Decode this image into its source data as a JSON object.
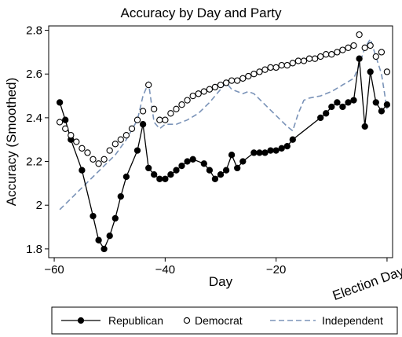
{
  "chart_data": {
    "type": "line",
    "title": "Accuracy by Day and Party",
    "xlabel": "Day",
    "ylabel": "Accuracy (Smoothed)",
    "xlim": [
      -61,
      1
    ],
    "ylim": [
      1.76,
      2.82
    ],
    "xticks": [
      -60,
      -40,
      -20
    ],
    "yticks": [
      1.8,
      2,
      2.2,
      2.4,
      2.6,
      2.8
    ],
    "annotation": "Election Day",
    "grid": false,
    "legend": "bottom",
    "series": [
      {
        "name": "Republican",
        "marker": "filled-circle",
        "line": "solid",
        "color": "#000000",
        "x": [
          -59,
          -58,
          -57,
          -55,
          -53,
          -52,
          -51,
          -50,
          -49,
          -48,
          -47,
          -45,
          -44,
          -43,
          -42,
          -41,
          -40,
          -39,
          -38,
          -37,
          -36,
          -35,
          -33,
          -32,
          -31,
          -30,
          -29,
          -28,
          -27,
          -26,
          -24,
          -23,
          -22,
          -21,
          -20,
          -19,
          -18,
          -17,
          -12,
          -11,
          -10,
          -9,
          -8,
          -7,
          -6,
          -5,
          -4,
          -3,
          -2,
          -1,
          0
        ],
        "y": [
          2.47,
          2.39,
          2.3,
          2.16,
          1.95,
          1.84,
          1.8,
          1.86,
          1.94,
          2.04,
          2.13,
          2.25,
          2.37,
          2.17,
          2.14,
          2.12,
          2.12,
          2.14,
          2.16,
          2.18,
          2.2,
          2.21,
          2.19,
          2.16,
          2.12,
          2.14,
          2.16,
          2.23,
          2.17,
          2.2,
          2.24,
          2.24,
          2.24,
          2.25,
          2.25,
          2.26,
          2.27,
          2.3,
          2.4,
          2.42,
          2.45,
          2.47,
          2.45,
          2.47,
          2.48,
          2.67,
          2.36,
          2.61,
          2.47,
          2.43,
          2.46
        ]
      },
      {
        "name": "Democrat",
        "marker": "hollow-circle",
        "line": "none",
        "color": "#000000",
        "x": [
          -59,
          -58,
          -57,
          -56,
          -55,
          -54,
          -53,
          -52,
          -51,
          -50,
          -49,
          -48,
          -47,
          -46,
          -45,
          -44,
          -43,
          -42,
          -41,
          -40,
          -39,
          -38,
          -37,
          -36,
          -35,
          -34,
          -33,
          -32,
          -31,
          -30,
          -29,
          -28,
          -27,
          -26,
          -25,
          -24,
          -23,
          -22,
          -21,
          -20,
          -19,
          -18,
          -17,
          -16,
          -15,
          -14,
          -13,
          -12,
          -11,
          -10,
          -9,
          -8,
          -7,
          -6,
          -5,
          -4,
          -3,
          -2,
          -1,
          0
        ],
        "y": [
          2.38,
          2.35,
          2.32,
          2.29,
          2.26,
          2.24,
          2.21,
          2.19,
          2.21,
          2.25,
          2.28,
          2.3,
          2.32,
          2.35,
          2.39,
          2.43,
          2.55,
          2.44,
          2.39,
          2.39,
          2.42,
          2.44,
          2.46,
          2.48,
          2.5,
          2.51,
          2.52,
          2.53,
          2.54,
          2.55,
          2.56,
          2.57,
          2.57,
          2.58,
          2.59,
          2.6,
          2.61,
          2.62,
          2.63,
          2.63,
          2.64,
          2.64,
          2.65,
          2.66,
          2.66,
          2.67,
          2.67,
          2.68,
          2.69,
          2.69,
          2.7,
          2.71,
          2.72,
          2.73,
          2.78,
          2.72,
          2.73,
          2.68,
          2.7,
          2.61
        ]
      },
      {
        "name": "Independent",
        "marker": "none",
        "line": "dashed",
        "color": "#7a93b8",
        "x": [
          -59,
          -57,
          -55,
          -53,
          -51,
          -49,
          -47,
          -45,
          -44,
          -43,
          -42,
          -41,
          -40,
          -38,
          -36,
          -34,
          -32,
          -30,
          -29,
          -28,
          -27,
          -26,
          -25,
          -24,
          -22,
          -20,
          -18,
          -17,
          -16,
          -15,
          -14,
          -12,
          -10,
          -8,
          -6,
          -5,
          -4,
          -3,
          -2,
          -1,
          0
        ],
        "y": [
          1.98,
          2.03,
          2.08,
          2.13,
          2.18,
          2.23,
          2.3,
          2.39,
          2.5,
          2.56,
          2.38,
          2.35,
          2.37,
          2.37,
          2.39,
          2.42,
          2.47,
          2.53,
          2.56,
          2.53,
          2.52,
          2.51,
          2.52,
          2.51,
          2.46,
          2.41,
          2.36,
          2.34,
          2.42,
          2.48,
          2.49,
          2.5,
          2.52,
          2.55,
          2.58,
          2.64,
          2.72,
          2.76,
          2.68,
          2.6,
          2.44
        ]
      }
    ]
  }
}
